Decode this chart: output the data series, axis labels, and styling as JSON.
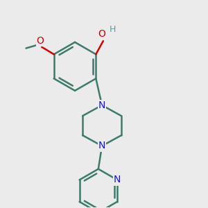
{
  "background_color": "#ebebeb",
  "bond_color": "#3d7a6a",
  "bond_width": 1.8,
  "atom_colors": {
    "O": "#cc0000",
    "N": "#1515cc",
    "H": "#5a9a9a",
    "C": "#3d7a6a"
  },
  "font_size": 10,
  "fig_width": 3.0,
  "fig_height": 3.0,
  "xlim": [
    0.5,
    7.5
  ],
  "ylim": [
    1.0,
    9.5
  ]
}
